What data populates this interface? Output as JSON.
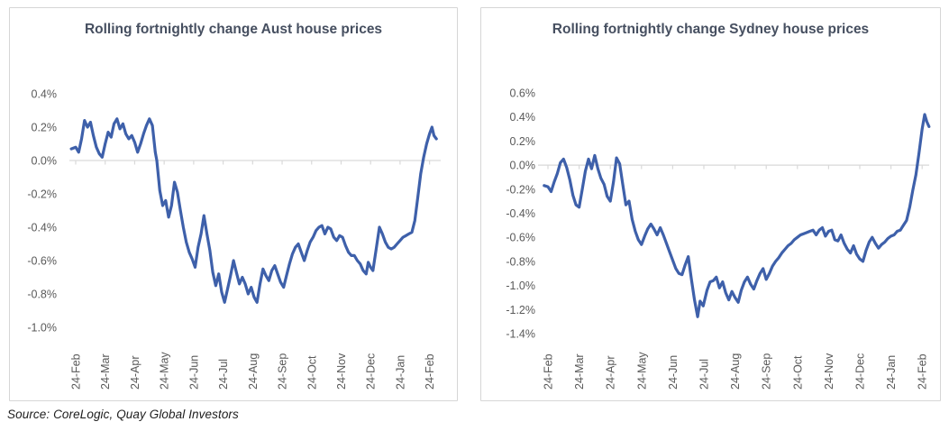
{
  "source_note": "Source: CoreLogic, Quay Global Investors",
  "colors": {
    "series_line": "#3e60aa",
    "axis_line": "#d9d9d9",
    "tick_label": "#595959",
    "title_text": "#464f60",
    "panel_border": "#d6d6d6"
  },
  "chart_data": [
    {
      "type": "line",
      "title": "Rolling fortnightly change Aust house prices",
      "xlabel": "",
      "ylabel": "",
      "grid": "zero-axis-only",
      "legend": "none",
      "ylim": [
        -1.0,
        0.4
      ],
      "ytick_labels": [
        "0.4%",
        "0.2%",
        "0.0%",
        "-0.2%",
        "-0.4%",
        "-0.6%",
        "-0.8%",
        "-1.0%"
      ],
      "ytick_values": [
        0.4,
        0.2,
        0.0,
        -0.2,
        -0.4,
        -0.6,
        -0.8,
        -1.0
      ],
      "x_tick_labels": [
        "24-Feb",
        "24-Mar",
        "24-Apr",
        "24-May",
        "24-Jun",
        "24-Jul",
        "24-Aug",
        "24-Sep",
        "24-Oct",
        "24-Nov",
        "24-Dec",
        "24-Jan",
        "24-Feb"
      ],
      "x_unit": "months since 24-Feb-2024",
      "series": [
        {
          "name": "Rolling fortnightly change (%)",
          "points": [
            [
              -0.15,
              0.07
            ],
            [
              0,
              0.08
            ],
            [
              0.1,
              0.05
            ],
            [
              0.2,
              0.13
            ],
            [
              0.3,
              0.24
            ],
            [
              0.4,
              0.2
            ],
            [
              0.5,
              0.23
            ],
            [
              0.6,
              0.15
            ],
            [
              0.7,
              0.08
            ],
            [
              0.8,
              0.04
            ],
            [
              0.9,
              0.02
            ],
            [
              1,
              0.1
            ],
            [
              1.1,
              0.17
            ],
            [
              1.2,
              0.14
            ],
            [
              1.3,
              0.22
            ],
            [
              1.4,
              0.25
            ],
            [
              1.5,
              0.19
            ],
            [
              1.6,
              0.22
            ],
            [
              1.7,
              0.16
            ],
            [
              1.8,
              0.13
            ],
            [
              1.9,
              0.15
            ],
            [
              2,
              0.11
            ],
            [
              2.1,
              0.05
            ],
            [
              2.2,
              0.1
            ],
            [
              2.3,
              0.16
            ],
            [
              2.4,
              0.21
            ],
            [
              2.5,
              0.25
            ],
            [
              2.6,
              0.21
            ],
            [
              2.7,
              0.05
            ],
            [
              2.75,
              0
            ],
            [
              2.85,
              -0.18
            ],
            [
              2.95,
              -0.27
            ],
            [
              3.05,
              -0.24
            ],
            [
              3.15,
              -0.34
            ],
            [
              3.25,
              -0.27
            ],
            [
              3.35,
              -0.13
            ],
            [
              3.45,
              -0.19
            ],
            [
              3.55,
              -0.3
            ],
            [
              3.65,
              -0.4
            ],
            [
              3.75,
              -0.49
            ],
            [
              3.85,
              -0.55
            ],
            [
              3.95,
              -0.59
            ],
            [
              4.05,
              -0.64
            ],
            [
              4.15,
              -0.52
            ],
            [
              4.25,
              -0.44
            ],
            [
              4.35,
              -0.33
            ],
            [
              4.45,
              -0.44
            ],
            [
              4.55,
              -0.54
            ],
            [
              4.65,
              -0.67
            ],
            [
              4.75,
              -0.75
            ],
            [
              4.85,
              -0.68
            ],
            [
              4.95,
              -0.79
            ],
            [
              5.05,
              -0.85
            ],
            [
              5.15,
              -0.77
            ],
            [
              5.25,
              -0.69
            ],
            [
              5.35,
              -0.6
            ],
            [
              5.45,
              -0.67
            ],
            [
              5.55,
              -0.74
            ],
            [
              5.65,
              -0.7
            ],
            [
              5.75,
              -0.74
            ],
            [
              5.85,
              -0.8
            ],
            [
              5.95,
              -0.76
            ],
            [
              6.05,
              -0.82
            ],
            [
              6.15,
              -0.85
            ],
            [
              6.25,
              -0.74
            ],
            [
              6.35,
              -0.65
            ],
            [
              6.45,
              -0.69
            ],
            [
              6.55,
              -0.72
            ],
            [
              6.65,
              -0.66
            ],
            [
              6.75,
              -0.63
            ],
            [
              6.85,
              -0.68
            ],
            [
              6.95,
              -0.73
            ],
            [
              7.05,
              -0.76
            ],
            [
              7.15,
              -0.69
            ],
            [
              7.25,
              -0.62
            ],
            [
              7.35,
              -0.56
            ],
            [
              7.45,
              -0.52
            ],
            [
              7.55,
              -0.5
            ],
            [
              7.65,
              -0.55
            ],
            [
              7.75,
              -0.6
            ],
            [
              7.85,
              -0.54
            ],
            [
              7.95,
              -0.49
            ],
            [
              8.05,
              -0.46
            ],
            [
              8.15,
              -0.42
            ],
            [
              8.25,
              -0.4
            ],
            [
              8.35,
              -0.39
            ],
            [
              8.45,
              -0.44
            ],
            [
              8.55,
              -0.4
            ],
            [
              8.65,
              -0.41
            ],
            [
              8.75,
              -0.46
            ],
            [
              8.85,
              -0.48
            ],
            [
              8.95,
              -0.45
            ],
            [
              9.05,
              -0.46
            ],
            [
              9.15,
              -0.51
            ],
            [
              9.25,
              -0.55
            ],
            [
              9.35,
              -0.57
            ],
            [
              9.45,
              -0.57
            ],
            [
              9.55,
              -0.6
            ],
            [
              9.65,
              -0.62
            ],
            [
              9.75,
              -0.66
            ],
            [
              9.85,
              -0.68
            ],
            [
              9.92,
              -0.61
            ],
            [
              10,
              -0.64
            ],
            [
              10.08,
              -0.66
            ],
            [
              10.2,
              -0.52
            ],
            [
              10.3,
              -0.4
            ],
            [
              10.4,
              -0.44
            ],
            [
              10.5,
              -0.49
            ],
            [
              10.6,
              -0.52
            ],
            [
              10.7,
              -0.53
            ],
            [
              10.8,
              -0.52
            ],
            [
              10.9,
              -0.5
            ],
            [
              11,
              -0.48
            ],
            [
              11.1,
              -0.46
            ],
            [
              11.2,
              -0.45
            ],
            [
              11.3,
              -0.44
            ],
            [
              11.4,
              -0.43
            ],
            [
              11.5,
              -0.36
            ],
            [
              11.6,
              -0.22
            ],
            [
              11.7,
              -0.08
            ],
            [
              11.8,
              0.02
            ],
            [
              11.9,
              0.1
            ],
            [
              12,
              0.16
            ],
            [
              12.08,
              0.2
            ],
            [
              12.15,
              0.15
            ],
            [
              12.23,
              0.13
            ]
          ]
        }
      ]
    },
    {
      "type": "line",
      "title": "Rolling fortnightly change Sydney house prices",
      "xlabel": "",
      "ylabel": "",
      "grid": "zero-axis-only",
      "legend": "none",
      "ylim": [
        -1.4,
        0.6
      ],
      "ytick_labels": [
        "0.6%",
        "0.4%",
        "0.2%",
        "0.0%",
        "-0.2%",
        "-0.4%",
        "-0.6%",
        "-0.8%",
        "-1.0%",
        "-1.2%",
        "-1.4%"
      ],
      "ytick_values": [
        0.6,
        0.4,
        0.2,
        0.0,
        -0.2,
        -0.4,
        -0.6,
        -0.8,
        -1.0,
        -1.2,
        -1.4
      ],
      "x_tick_labels": [
        "24-Feb",
        "24-Mar",
        "24-Apr",
        "24-May",
        "24-Jun",
        "24-Jul",
        "24-Aug",
        "24-Sep",
        "24-Oct",
        "24-Nov",
        "24-Dec",
        "24-Jan",
        "24-Feb"
      ],
      "x_unit": "months since 24-Feb-2024",
      "series": [
        {
          "name": "Rolling fortnightly change (%)",
          "points": [
            [
              -0.12,
              -0.17
            ],
            [
              0,
              -0.18
            ],
            [
              0.1,
              -0.22
            ],
            [
              0.2,
              -0.14
            ],
            [
              0.3,
              -0.07
            ],
            [
              0.4,
              0.02
            ],
            [
              0.5,
              0.05
            ],
            [
              0.6,
              -0.02
            ],
            [
              0.7,
              -0.12
            ],
            [
              0.8,
              -0.25
            ],
            [
              0.9,
              -0.33
            ],
            [
              1,
              -0.35
            ],
            [
              1.1,
              -0.2
            ],
            [
              1.2,
              -0.05
            ],
            [
              1.3,
              0.05
            ],
            [
              1.4,
              -0.03
            ],
            [
              1.5,
              0.08
            ],
            [
              1.6,
              -0.03
            ],
            [
              1.7,
              -0.11
            ],
            [
              1.8,
              -0.16
            ],
            [
              1.9,
              -0.26
            ],
            [
              2,
              -0.3
            ],
            [
              2.1,
              -0.14
            ],
            [
              2.2,
              0.06
            ],
            [
              2.3,
              0.01
            ],
            [
              2.4,
              -0.16
            ],
            [
              2.5,
              -0.33
            ],
            [
              2.6,
              -0.3
            ],
            [
              2.7,
              -0.45
            ],
            [
              2.8,
              -0.55
            ],
            [
              2.9,
              -0.62
            ],
            [
              3,
              -0.66
            ],
            [
              3.1,
              -0.59
            ],
            [
              3.2,
              -0.53
            ],
            [
              3.3,
              -0.49
            ],
            [
              3.4,
              -0.53
            ],
            [
              3.5,
              -0.58
            ],
            [
              3.6,
              -0.52
            ],
            [
              3.7,
              -0.58
            ],
            [
              3.8,
              -0.65
            ],
            [
              3.9,
              -0.72
            ],
            [
              4,
              -0.79
            ],
            [
              4.1,
              -0.86
            ],
            [
              4.2,
              -0.9
            ],
            [
              4.3,
              -0.91
            ],
            [
              4.4,
              -0.83
            ],
            [
              4.5,
              -0.76
            ],
            [
              4.6,
              -0.95
            ],
            [
              4.7,
              -1.12
            ],
            [
              4.8,
              -1.26
            ],
            [
              4.88,
              -1.13
            ],
            [
              4.98,
              -1.17
            ],
            [
              5.1,
              -1.04
            ],
            [
              5.2,
              -0.97
            ],
            [
              5.3,
              -0.96
            ],
            [
              5.4,
              -0.93
            ],
            [
              5.5,
              -1.02
            ],
            [
              5.6,
              -0.97
            ],
            [
              5.7,
              -1.06
            ],
            [
              5.8,
              -1.12
            ],
            [
              5.9,
              -1.05
            ],
            [
              6,
              -1.1
            ],
            [
              6.1,
              -1.14
            ],
            [
              6.2,
              -1.04
            ],
            [
              6.3,
              -0.97
            ],
            [
              6.4,
              -0.93
            ],
            [
              6.5,
              -0.99
            ],
            [
              6.6,
              -1.03
            ],
            [
              6.7,
              -0.96
            ],
            [
              6.8,
              -0.9
            ],
            [
              6.9,
              -0.86
            ],
            [
              7,
              -0.95
            ],
            [
              7.1,
              -0.9
            ],
            [
              7.2,
              -0.84
            ],
            [
              7.3,
              -0.8
            ],
            [
              7.4,
              -0.77
            ],
            [
              7.5,
              -0.73
            ],
            [
              7.6,
              -0.7
            ],
            [
              7.7,
              -0.67
            ],
            [
              7.8,
              -0.65
            ],
            [
              7.9,
              -0.62
            ],
            [
              8,
              -0.6
            ],
            [
              8.1,
              -0.58
            ],
            [
              8.2,
              -0.57
            ],
            [
              8.3,
              -0.56
            ],
            [
              8.4,
              -0.55
            ],
            [
              8.5,
              -0.54
            ],
            [
              8.6,
              -0.58
            ],
            [
              8.7,
              -0.54
            ],
            [
              8.8,
              -0.52
            ],
            [
              8.9,
              -0.59
            ],
            [
              9,
              -0.55
            ],
            [
              9.1,
              -0.54
            ],
            [
              9.2,
              -0.62
            ],
            [
              9.3,
              -0.63
            ],
            [
              9.4,
              -0.58
            ],
            [
              9.5,
              -0.65
            ],
            [
              9.6,
              -0.7
            ],
            [
              9.7,
              -0.73
            ],
            [
              9.8,
              -0.67
            ],
            [
              9.9,
              -0.74
            ],
            [
              10,
              -0.78
            ],
            [
              10.1,
              -0.8
            ],
            [
              10.2,
              -0.71
            ],
            [
              10.3,
              -0.64
            ],
            [
              10.4,
              -0.6
            ],
            [
              10.5,
              -0.65
            ],
            [
              10.6,
              -0.69
            ],
            [
              10.7,
              -0.66
            ],
            [
              10.8,
              -0.64
            ],
            [
              10.9,
              -0.61
            ],
            [
              11,
              -0.59
            ],
            [
              11.1,
              -0.58
            ],
            [
              11.2,
              -0.55
            ],
            [
              11.3,
              -0.54
            ],
            [
              11.4,
              -0.5
            ],
            [
              11.5,
              -0.46
            ],
            [
              11.6,
              -0.35
            ],
            [
              11.7,
              -0.21
            ],
            [
              11.8,
              -0.08
            ],
            [
              11.9,
              0.1
            ],
            [
              12,
              0.3
            ],
            [
              12.08,
              0.42
            ],
            [
              12.15,
              0.36
            ],
            [
              12.22,
              0.32
            ]
          ]
        }
      ]
    }
  ]
}
